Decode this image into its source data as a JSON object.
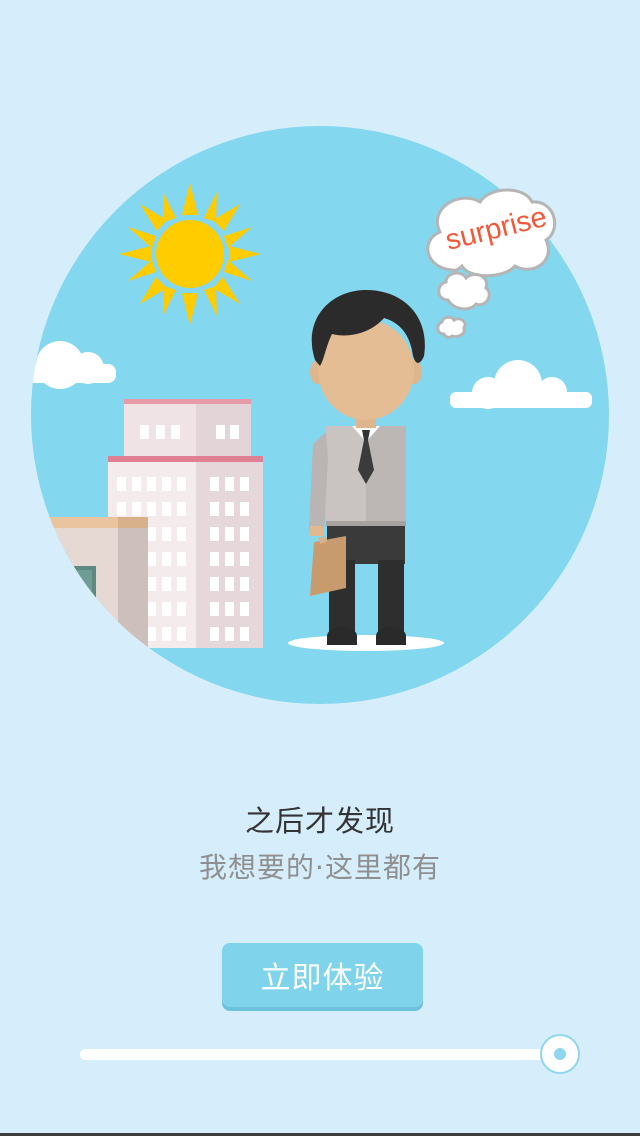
{
  "illustration": {
    "thought_bubble_text": "surprise",
    "colors": {
      "sky_circle": "#83d7ee",
      "sun": "#ffcc00",
      "bubble_text": "#f05a3a"
    }
  },
  "intro": {
    "headline": "之后才发现",
    "subline": "我想要的·这里都有"
  },
  "cta": {
    "label": "立即体验"
  },
  "progress": {
    "value_fraction": 1.0
  },
  "colors": {
    "background": "#d6eefc",
    "button": "#7fd3ea"
  }
}
